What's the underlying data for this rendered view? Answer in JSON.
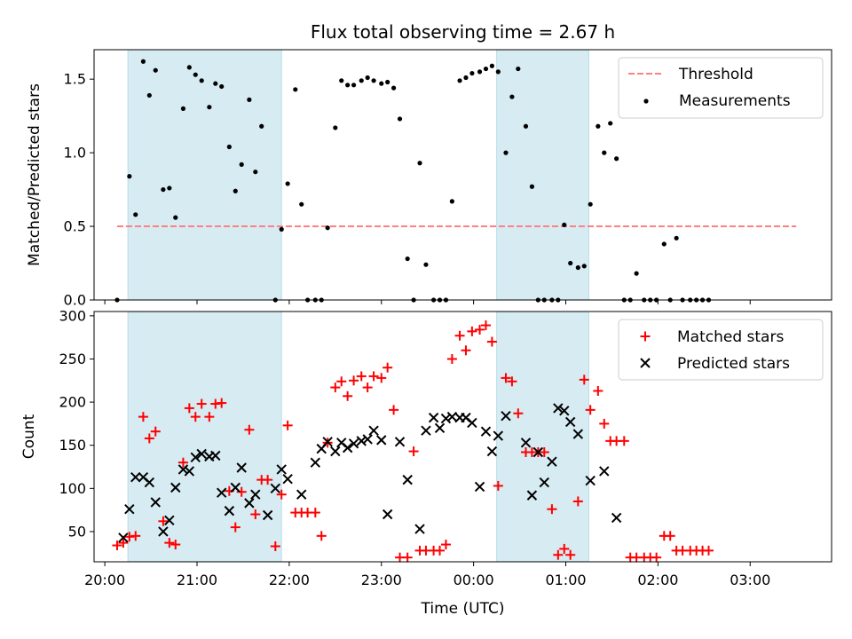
{
  "chart_data": {
    "type": "scatter",
    "title": "Flux total observing time = 2.67 h",
    "xlabel": "Time (UTC)",
    "x_ticks": [
      "20:00",
      "21:00",
      "22:00",
      "23:00",
      "00:00",
      "01:00",
      "02:00",
      "03:00"
    ],
    "x_range": [
      "19:53",
      "03:53"
    ],
    "shaded_intervals": [
      [
        "20:15",
        "21:55"
      ],
      [
        "00:15",
        "01:15"
      ]
    ],
    "top": {
      "ylabel": "Matched/Predicted stars",
      "ylim": [
        0,
        1.7
      ],
      "yticks": [
        "0.0",
        "0.5",
        "1.0",
        "1.5"
      ],
      "legend": [
        "Threshold",
        "Measurements"
      ],
      "threshold": {
        "name": "Threshold",
        "y": 0.5,
        "x_start": "20:08",
        "x_end": "03:30",
        "color": "#ff8080"
      },
      "measurements": {
        "name": "Measurements",
        "color": "#000000",
        "points": [
          [
            "20:08",
            0.0
          ],
          [
            "20:16",
            0.84
          ],
          [
            "20:20",
            0.58
          ],
          [
            "20:25",
            1.62
          ],
          [
            "20:29",
            1.39
          ],
          [
            "20:33",
            1.56
          ],
          [
            "20:38",
            0.75
          ],
          [
            "20:42",
            0.76
          ],
          [
            "20:46",
            0.56
          ],
          [
            "20:51",
            1.3
          ],
          [
            "20:55",
            1.58
          ],
          [
            "20:59",
            1.53
          ],
          [
            "21:03",
            1.49
          ],
          [
            "21:08",
            1.31
          ],
          [
            "21:12",
            1.47
          ],
          [
            "21:16",
            1.45
          ],
          [
            "21:21",
            1.04
          ],
          [
            "21:25",
            0.74
          ],
          [
            "21:29",
            0.92
          ],
          [
            "21:34",
            1.36
          ],
          [
            "21:38",
            0.87
          ],
          [
            "21:42",
            1.18
          ],
          [
            "21:51",
            0.0
          ],
          [
            "21:55",
            0.48
          ],
          [
            "21:59",
            0.79
          ],
          [
            "22:04",
            1.43
          ],
          [
            "22:08",
            0.65
          ],
          [
            "22:12",
            0.0
          ],
          [
            "22:17",
            0.0
          ],
          [
            "22:21",
            0.0
          ],
          [
            "22:25",
            0.49
          ],
          [
            "22:30",
            1.17
          ],
          [
            "22:34",
            1.49
          ],
          [
            "22:38",
            1.46
          ],
          [
            "22:42",
            1.46
          ],
          [
            "22:47",
            1.49
          ],
          [
            "22:51",
            1.51
          ],
          [
            "22:55",
            1.49
          ],
          [
            "23:00",
            1.47
          ],
          [
            "23:04",
            1.48
          ],
          [
            "23:08",
            1.44
          ],
          [
            "23:12",
            1.23
          ],
          [
            "23:17",
            0.28
          ],
          [
            "23:21",
            0.0
          ],
          [
            "23:25",
            0.93
          ],
          [
            "23:29",
            0.24
          ],
          [
            "23:34",
            0.0
          ],
          [
            "23:38",
            0.0
          ],
          [
            "23:42",
            0.0
          ],
          [
            "23:46",
            0.67
          ],
          [
            "23:51",
            1.49
          ],
          [
            "23:55",
            1.51
          ],
          [
            "23:59",
            1.54
          ],
          [
            "00:04",
            1.55
          ],
          [
            "00:08",
            1.57
          ],
          [
            "00:12",
            1.59
          ],
          [
            "00:16",
            1.55
          ],
          [
            "00:21",
            1.0
          ],
          [
            "00:25",
            1.38
          ],
          [
            "00:29",
            1.57
          ],
          [
            "00:34",
            1.18
          ],
          [
            "00:38",
            0.77
          ],
          [
            "00:42",
            0.0
          ],
          [
            "00:46",
            0.0
          ],
          [
            "00:51",
            0.0
          ],
          [
            "00:55",
            0.0
          ],
          [
            "00:59",
            0.51
          ],
          [
            "01:03",
            0.25
          ],
          [
            "01:08",
            0.22
          ],
          [
            "01:12",
            0.23
          ],
          [
            "01:16",
            0.65
          ],
          [
            "01:21",
            1.18
          ],
          [
            "01:25",
            1.0
          ],
          [
            "01:29",
            1.2
          ],
          [
            "01:33",
            0.96
          ],
          [
            "01:38",
            0.0
          ],
          [
            "01:42",
            0.0
          ],
          [
            "01:46",
            0.18
          ],
          [
            "01:51",
            0.0
          ],
          [
            "01:55",
            0.0
          ],
          [
            "01:59",
            0.0
          ],
          [
            "02:04",
            0.38
          ],
          [
            "02:08",
            0.0
          ],
          [
            "02:12",
            0.42
          ],
          [
            "02:16",
            0.0
          ],
          [
            "02:21",
            0.0
          ],
          [
            "02:25",
            0.0
          ],
          [
            "02:29",
            0.0
          ],
          [
            "02:33",
            0.0
          ]
        ]
      }
    },
    "bottom": {
      "ylabel": "Count",
      "ylim": [
        15,
        305
      ],
      "yticks": [
        "50",
        "100",
        "150",
        "200",
        "250",
        "300"
      ],
      "legend": [
        "Matched stars",
        "Predicted stars"
      ],
      "series": [
        {
          "name": "Matched stars",
          "marker": "+",
          "color": "#ff0000",
          "points": [
            [
              "20:08",
              34
            ],
            [
              "20:12",
              37
            ],
            [
              "20:16",
              44
            ],
            [
              "20:20",
              45
            ],
            [
              "20:25",
              183
            ],
            [
              "20:29",
              158
            ],
            [
              "20:33",
              166
            ],
            [
              "20:38",
              62
            ],
            [
              "20:42",
              37
            ],
            [
              "20:46",
              35
            ],
            [
              "20:51",
              130
            ],
            [
              "20:55",
              193
            ],
            [
              "20:59",
              183
            ],
            [
              "21:03",
              198
            ],
            [
              "21:08",
              183
            ],
            [
              "21:12",
              198
            ],
            [
              "21:16",
              199
            ],
            [
              "21:21",
              97
            ],
            [
              "21:25",
              55
            ],
            [
              "21:29",
              96
            ],
            [
              "21:34",
              168
            ],
            [
              "21:38",
              70
            ],
            [
              "21:42",
              110
            ],
            [
              "21:46",
              110
            ],
            [
              "21:51",
              33
            ],
            [
              "21:55",
              93
            ],
            [
              "21:59",
              173
            ],
            [
              "22:04",
              72
            ],
            [
              "22:08",
              72
            ],
            [
              "22:12",
              72
            ],
            [
              "22:17",
              72
            ],
            [
              "22:21",
              45
            ],
            [
              "22:25",
              153
            ],
            [
              "22:30",
              217
            ],
            [
              "22:34",
              224
            ],
            [
              "22:38",
              207
            ],
            [
              "22:42",
              225
            ],
            [
              "22:47",
              230
            ],
            [
              "22:51",
              217
            ],
            [
              "22:55",
              230
            ],
            [
              "23:00",
              228
            ],
            [
              "23:04",
              240
            ],
            [
              "23:08",
              191
            ],
            [
              "23:12",
              20
            ],
            [
              "23:17",
              20
            ],
            [
              "23:21",
              143
            ],
            [
              "23:25",
              28
            ],
            [
              "23:29",
              28
            ],
            [
              "23:34",
              28
            ],
            [
              "23:38",
              28
            ],
            [
              "23:42",
              35
            ],
            [
              "23:46",
              250
            ],
            [
              "23:51",
              277
            ],
            [
              "23:55",
              260
            ],
            [
              "23:59",
              282
            ],
            [
              "00:04",
              284
            ],
            [
              "00:08",
              289
            ],
            [
              "00:12",
              270
            ],
            [
              "00:16",
              103
            ],
            [
              "00:21",
              228
            ],
            [
              "00:25",
              224
            ],
            [
              "00:29",
              187
            ],
            [
              "00:34",
              142
            ],
            [
              "00:38",
              142
            ],
            [
              "00:42",
              142
            ],
            [
              "00:46",
              142
            ],
            [
              "00:51",
              76
            ],
            [
              "00:55",
              23
            ],
            [
              "00:59",
              30
            ],
            [
              "01:03",
              23
            ],
            [
              "01:08",
              85
            ],
            [
              "01:12",
              226
            ],
            [
              "01:16",
              191
            ],
            [
              "01:21",
              213
            ],
            [
              "01:25",
              175
            ],
            [
              "01:29",
              155
            ],
            [
              "01:33",
              155
            ],
            [
              "01:38",
              155
            ],
            [
              "01:42",
              20
            ],
            [
              "01:46",
              20
            ],
            [
              "01:51",
              20
            ],
            [
              "01:55",
              20
            ],
            [
              "01:59",
              20
            ],
            [
              "02:04",
              45
            ],
            [
              "02:08",
              45
            ],
            [
              "02:12",
              28
            ],
            [
              "02:16",
              28
            ],
            [
              "02:21",
              28
            ],
            [
              "02:25",
              28
            ],
            [
              "02:29",
              28
            ],
            [
              "02:33",
              28
            ]
          ]
        },
        {
          "name": "Predicted stars",
          "marker": "x",
          "color": "#000000",
          "points": [
            [
              "20:12",
              43
            ],
            [
              "20:16",
              76
            ],
            [
              "20:20",
              113
            ],
            [
              "20:25",
              113
            ],
            [
              "20:29",
              107
            ],
            [
              "20:33",
              84
            ],
            [
              "20:38",
              50
            ],
            [
              "20:42",
              63
            ],
            [
              "20:46",
              101
            ],
            [
              "20:51",
              122
            ],
            [
              "20:55",
              120
            ],
            [
              "20:59",
              136
            ],
            [
              "21:03",
              140
            ],
            [
              "21:08",
              137
            ],
            [
              "21:12",
              138
            ],
            [
              "21:16",
              95
            ],
            [
              "21:21",
              74
            ],
            [
              "21:25",
              101
            ],
            [
              "21:29",
              124
            ],
            [
              "21:34",
              83
            ],
            [
              "21:38",
              93
            ],
            [
              "21:46",
              69
            ],
            [
              "21:51",
              100
            ],
            [
              "21:55",
              122
            ],
            [
              "21:59",
              111
            ],
            [
              "22:08",
              93
            ],
            [
              "22:17",
              130
            ],
            [
              "22:21",
              146
            ],
            [
              "22:25",
              154
            ],
            [
              "22:30",
              143
            ],
            [
              "22:34",
              153
            ],
            [
              "22:38",
              147
            ],
            [
              "22:42",
              152
            ],
            [
              "22:47",
              155
            ],
            [
              "22:51",
              157
            ],
            [
              "22:55",
              167
            ],
            [
              "23:00",
              156
            ],
            [
              "23:04",
              70
            ],
            [
              "23:12",
              154
            ],
            [
              "23:17",
              110
            ],
            [
              "23:25",
              53
            ],
            [
              "23:29",
              167
            ],
            [
              "23:34",
              182
            ],
            [
              "23:38",
              170
            ],
            [
              "23:42",
              181
            ],
            [
              "23:46",
              183
            ],
            [
              "23:51",
              182
            ],
            [
              "23:55",
              182
            ],
            [
              "23:59",
              176
            ],
            [
              "00:04",
              102
            ],
            [
              "00:08",
              166
            ],
            [
              "00:12",
              143
            ],
            [
              "00:16",
              161
            ],
            [
              "00:21",
              184
            ],
            [
              "00:34",
              153
            ],
            [
              "00:38",
              92
            ],
            [
              "00:42",
              142
            ],
            [
              "00:46",
              107
            ],
            [
              "00:51",
              131
            ],
            [
              "00:55",
              193
            ],
            [
              "00:59",
              190
            ],
            [
              "01:03",
              177
            ],
            [
              "01:08",
              163
            ],
            [
              "01:16",
              109
            ],
            [
              "01:25",
              120
            ],
            [
              "01:33",
              66
            ]
          ]
        }
      ]
    }
  }
}
